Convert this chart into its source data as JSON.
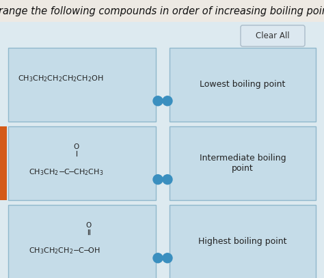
{
  "title": "Arrange the following compounds in order of increasing boiling point.",
  "title_fontsize": 10.5,
  "page_bg": "#e8e4de",
  "panel_bg": "#ddeaf0",
  "box_bg": "#c5dce8",
  "box_border": "#90b8cc",
  "clear_all_text": "Clear All",
  "right_labels": [
    "Lowest boiling point",
    "Intermediate boiling\npoint",
    "Highest boiling point"
  ],
  "dot_color": "#3a8fbf",
  "orange_bar_color": "#d45a18",
  "figwidth": 4.74,
  "figheight": 4.07,
  "dpi": 100
}
